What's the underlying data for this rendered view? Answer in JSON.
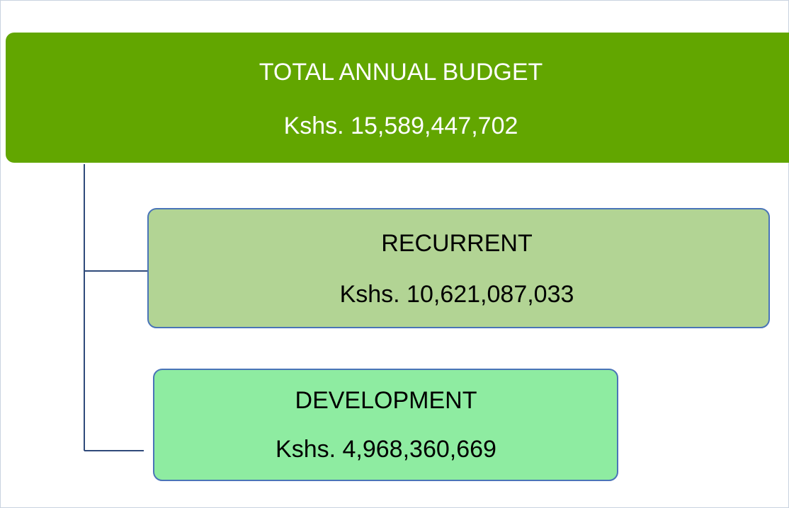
{
  "nodes": [
    {
      "label": "TOTAL ANNUAL BUDGET",
      "amount": "Kshs. 15,589,447,702"
    },
    {
      "label": "RECURRENT",
      "amount": "Kshs. 10,621,087,033"
    },
    {
      "label": "DEVELOPMENT",
      "amount": "Kshs. 4,968,360,669"
    }
  ]
}
